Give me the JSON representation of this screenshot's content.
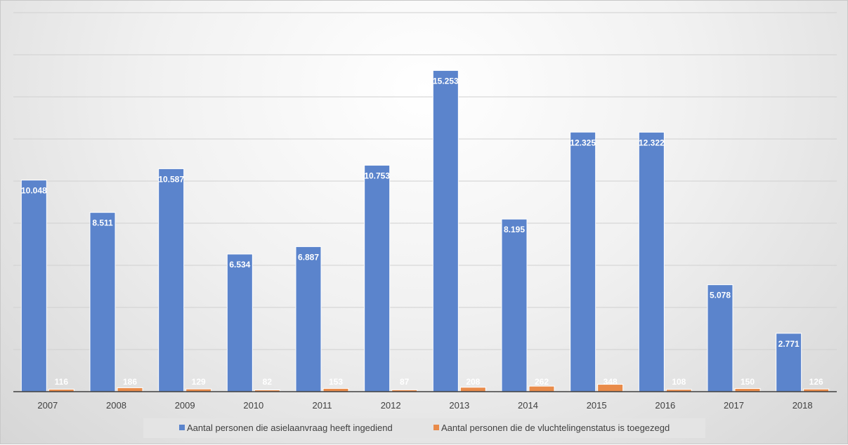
{
  "chart_data": {
    "type": "bar",
    "categories": [
      "2007",
      "2008",
      "2009",
      "2010",
      "2011",
      "2012",
      "2013",
      "2014",
      "2015",
      "2016",
      "2017",
      "2018"
    ],
    "series": [
      {
        "name": "Aantal personen die asielaanvraag heeft ingediend",
        "color": "#5b84cc",
        "values": [
          10048,
          8511,
          10587,
          6534,
          6887,
          10753,
          15253,
          8195,
          12325,
          12322,
          5078,
          2771
        ],
        "labels": [
          "10.048",
          "8.511",
          "10.587",
          "6.534",
          "6.887",
          "10.753",
          "15.253",
          "8.195",
          "12.325",
          "12.322",
          "5.078",
          "2.771"
        ]
      },
      {
        "name": "Aantal personen die de vluchtelingenstatus is toegezegd",
        "color": "#e98b4a",
        "values": [
          116,
          186,
          129,
          82,
          153,
          87,
          208,
          262,
          348,
          108,
          150,
          126
        ],
        "labels": [
          "116",
          "186",
          "129",
          "82",
          "153",
          "87",
          "208",
          "262",
          "348",
          "108",
          "150",
          "126"
        ]
      }
    ],
    "ylim": [
      0,
      18000
    ],
    "grid": true,
    "legend_position": "bottom",
    "title": "",
    "xlabel": "",
    "ylabel": ""
  }
}
